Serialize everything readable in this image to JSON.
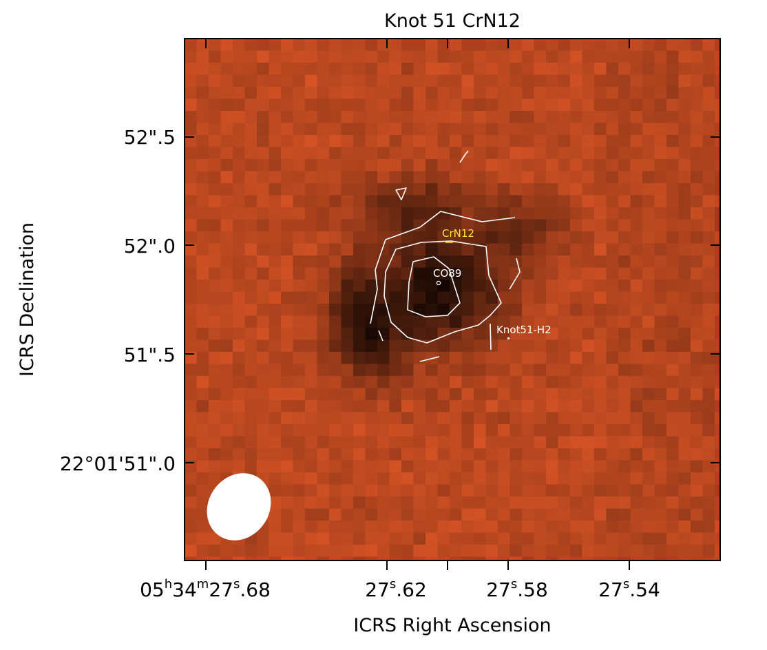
{
  "title": "Knot 51 CrN12",
  "x_axis": {
    "label": "ICRS Right Ascension",
    "ticks": [
      {
        "value": "27.68",
        "h": "05",
        "m": "34",
        "s": "27",
        "frac": ".68"
      },
      {
        "value": "27.62",
        "s": "27",
        "frac": ".62"
      },
      {
        "value": "27.58",
        "s": "27",
        "frac": ".58"
      },
      {
        "value": "27.54",
        "s": "27",
        "frac": ".54"
      }
    ]
  },
  "y_axis": {
    "label": "ICRS Declination",
    "ticks": [
      "52\".5",
      "52\".0",
      "51\".5",
      "22°01'51\".0"
    ]
  },
  "markers": [
    {
      "id": "crn12",
      "label": "CrN12",
      "color": "#ffe433"
    },
    {
      "id": "co89",
      "label": "CO89",
      "color": "#ffffff"
    },
    {
      "id": "knot51h2",
      "label": "Knot51-H2",
      "color": "#ffffff"
    }
  ],
  "colors": {
    "background": "#ffffff",
    "image_base": "#b8461f",
    "image_dark": "#1e0804",
    "contour": "#ffffff",
    "beam": "#ffffff"
  }
}
